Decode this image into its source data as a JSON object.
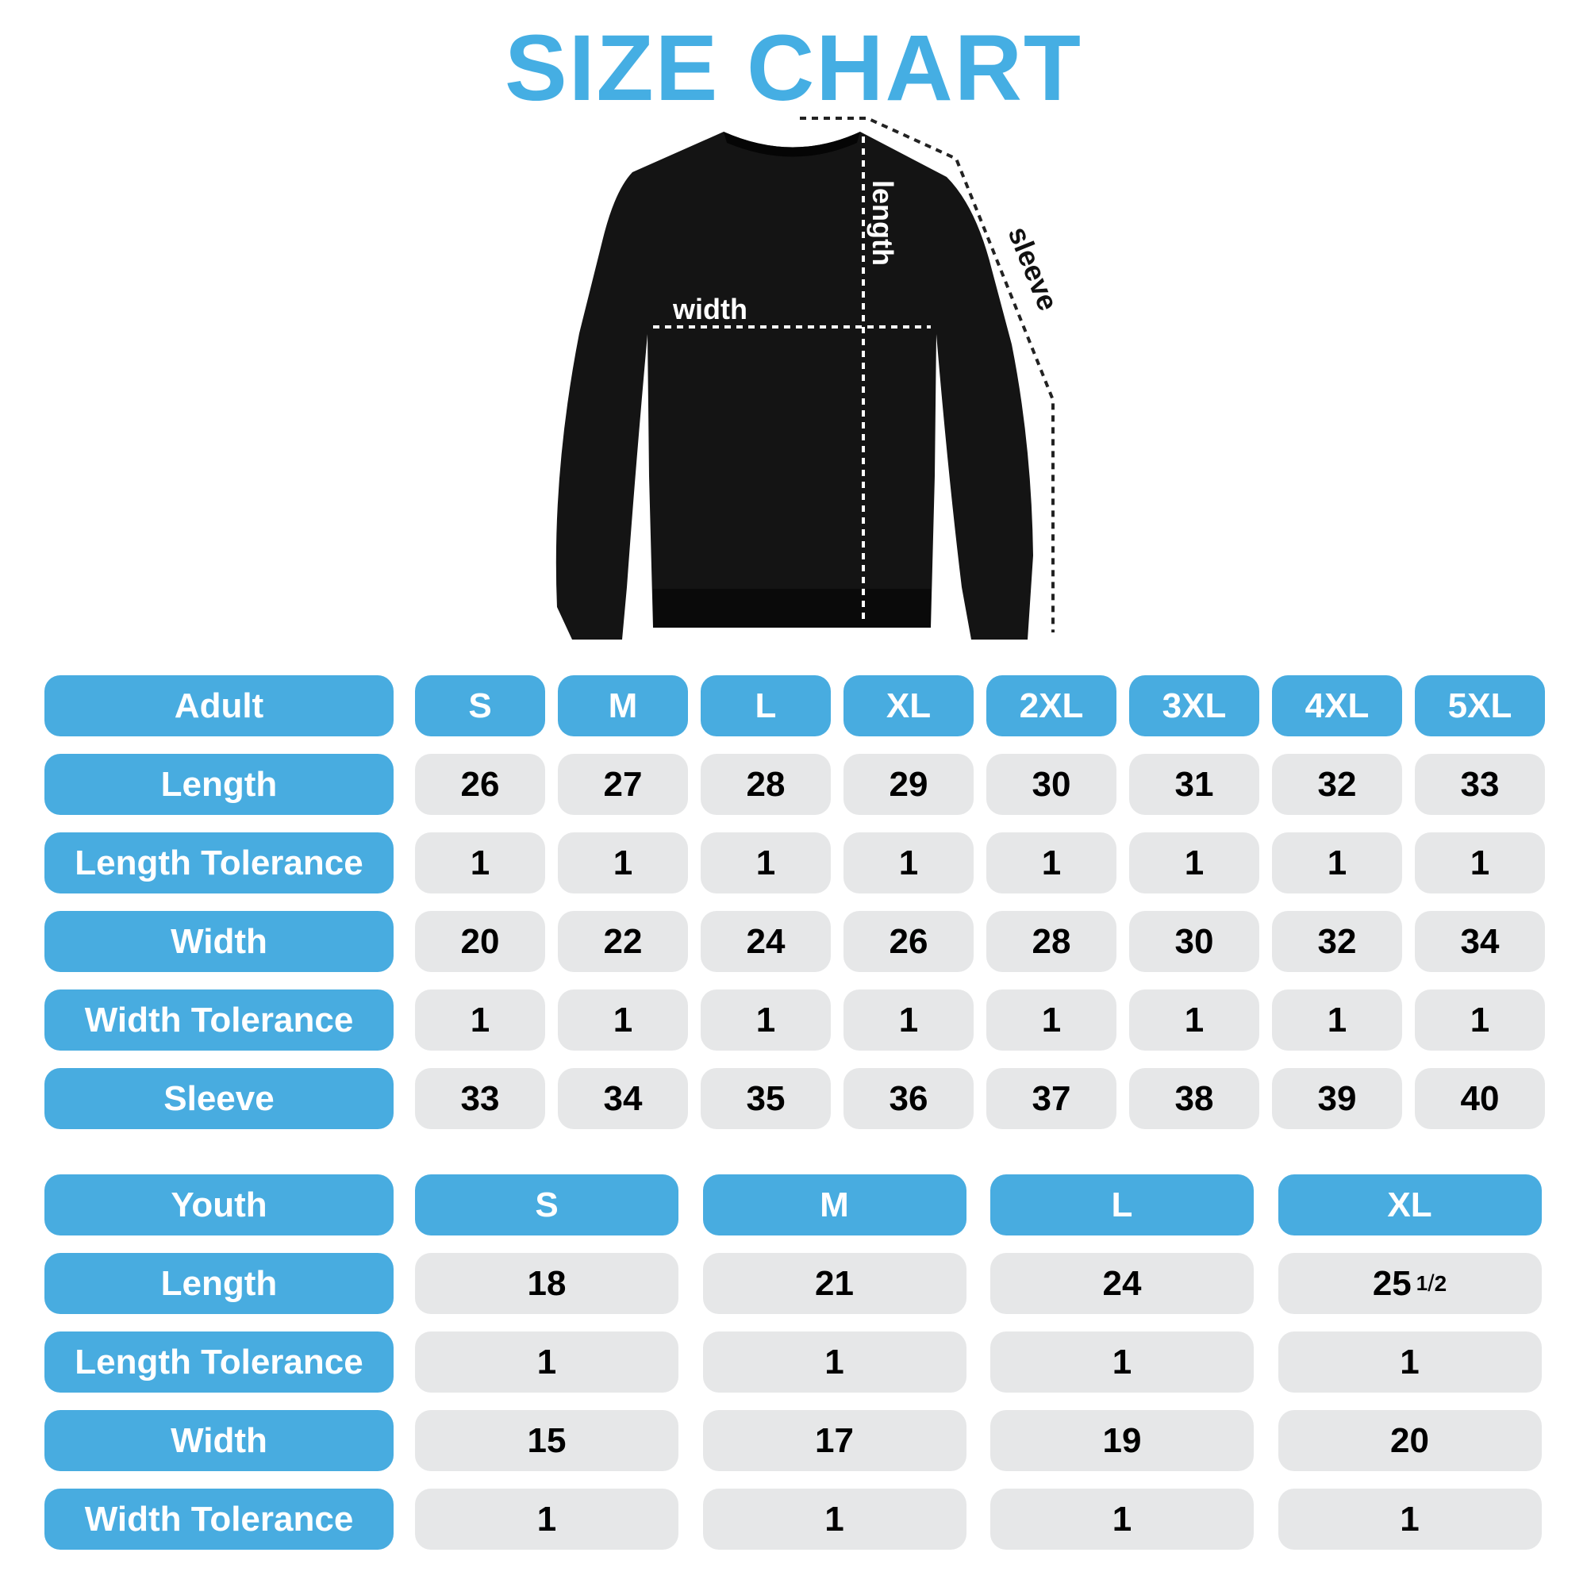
{
  "title": "SIZE CHART",
  "diagram_labels": {
    "width": "width",
    "length": "length",
    "sleeve": "sleeve"
  },
  "colors": {
    "accent": "#48ace0",
    "title": "#45aee3",
    "cell": "#e6e7e8",
    "garment": "#141414"
  },
  "adult": {
    "header": "Adult",
    "sizes": [
      "S",
      "M",
      "L",
      "XL",
      "2XL",
      "3XL",
      "4XL",
      "5XL"
    ],
    "rows": [
      {
        "label": "Length",
        "values": [
          "26",
          "27",
          "28",
          "29",
          "30",
          "31",
          "32",
          "33"
        ]
      },
      {
        "label": "Length Tolerance",
        "values": [
          "1",
          "1",
          "1",
          "1",
          "1",
          "1",
          "1",
          "1"
        ]
      },
      {
        "label": "Width",
        "values": [
          "20",
          "22",
          "24",
          "26",
          "28",
          "30",
          "32",
          "34"
        ]
      },
      {
        "label": "Width Tolerance",
        "values": [
          "1",
          "1",
          "1",
          "1",
          "1",
          "1",
          "1",
          "1"
        ]
      },
      {
        "label": "Sleeve",
        "values": [
          "33",
          "34",
          "35",
          "36",
          "37",
          "38",
          "39",
          "40"
        ]
      }
    ]
  },
  "youth": {
    "header": "Youth",
    "sizes": [
      "S",
      "M",
      "L",
      "XL"
    ],
    "rows": [
      {
        "label": "Length",
        "values": [
          "18",
          "21",
          "24",
          {
            "whole": "25",
            "num": "1",
            "den": "2"
          }
        ]
      },
      {
        "label": "Length Tolerance",
        "values": [
          "1",
          "1",
          "1",
          "1"
        ]
      },
      {
        "label": "Width",
        "values": [
          "15",
          "17",
          "19",
          "20"
        ]
      },
      {
        "label": "Width Tolerance",
        "values": [
          "1",
          "1",
          "1",
          "1"
        ]
      }
    ]
  }
}
